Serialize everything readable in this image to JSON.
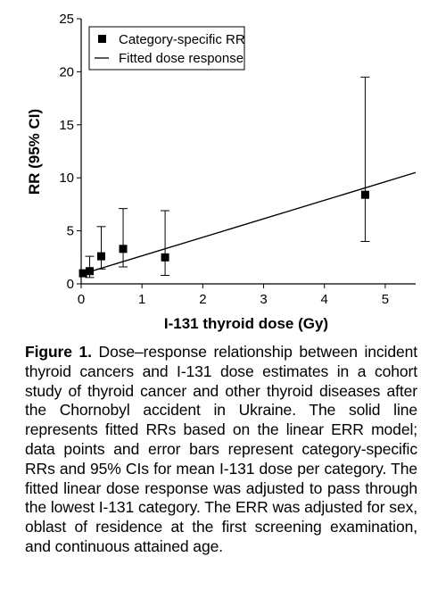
{
  "chart_data": {
    "type": "scatter",
    "xlabel": "I-131 thyroid dose (Gy)",
    "ylabel": "RR (95% CI)",
    "xlim": [
      0,
      5.5
    ],
    "ylim": [
      0,
      25
    ],
    "x_ticks": [
      "0",
      "1",
      "2",
      "3",
      "4",
      "5"
    ],
    "y_ticks": [
      "0",
      "5",
      "10",
      "15",
      "20",
      "25"
    ],
    "grid": false,
    "legend_position": "top-left",
    "series": [
      {
        "name": "Category-specific RR",
        "marker": "square",
        "points": [
          {
            "x": 0.03,
            "y": 1.0,
            "lo": 1.0,
            "hi": 1.0
          },
          {
            "x": 0.14,
            "y": 1.2,
            "lo": 0.6,
            "hi": 2.6
          },
          {
            "x": 0.33,
            "y": 2.6,
            "lo": 1.4,
            "hi": 5.4
          },
          {
            "x": 0.69,
            "y": 3.3,
            "lo": 1.6,
            "hi": 7.1
          },
          {
            "x": 1.38,
            "y": 2.5,
            "lo": 0.8,
            "hi": 6.9
          },
          {
            "x": 4.67,
            "y": 8.4,
            "lo": 4.0,
            "hi": 19.5
          }
        ]
      },
      {
        "name": "Fitted dose response",
        "type": "line",
        "points": [
          {
            "x": 0.0,
            "y": 0.9
          },
          {
            "x": 5.5,
            "y": 10.5
          }
        ]
      }
    ]
  },
  "caption": {
    "label": "Figure 1.",
    "text": "Dose–response relationship between incident thyroid cancers and I-131 dose estimates in a cohort study of thyroid cancer and other thyroid diseases after the Chornobyl accident in Ukraine. The solid line represents fitted RRs based on the linear ERR model; data points and error bars represent category-specific RRs and 95% CIs for mean I-131 dose per category. The fitted linear dose response was adjusted to pass through the lowest I-131 category. The ERR was adjusted for sex, oblast of residence at the first screening examination, and continuous attained age."
  }
}
